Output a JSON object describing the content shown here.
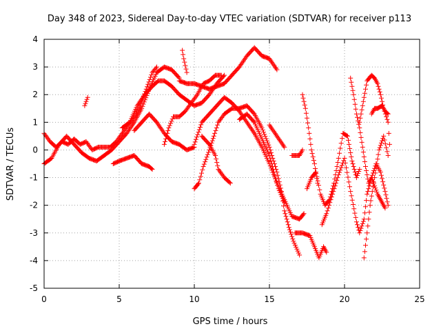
{
  "chart_data": {
    "type": "scatter",
    "title": "Day 348 of 2023, Sidereal Day-to-day VTEC variation (SDTVAR) for receiver p113",
    "xlabel": "GPS time / hours",
    "ylabel": "SDTVAR / TECUs",
    "xlim": [
      0,
      25
    ],
    "ylim": [
      -5,
      4
    ],
    "xticks": [
      "0",
      "5",
      "10",
      "15",
      "20",
      "25"
    ],
    "yticks": [
      "4",
      "3",
      "2",
      "1",
      "0",
      "-1",
      "-2",
      "-3",
      "-4",
      "-5"
    ],
    "grid": true,
    "marker": "plus",
    "color": "#ff0000",
    "series": [
      {
        "name": "track-1",
        "points": [
          [
            0.0,
            0.6
          ],
          [
            0.4,
            0.3
          ],
          [
            0.8,
            0.1
          ],
          [
            1.2,
            0.3
          ],
          [
            1.6,
            0.2
          ],
          [
            2.0,
            0.4
          ],
          [
            2.4,
            0.2
          ],
          [
            2.8,
            0.3
          ],
          [
            3.2,
            0.0
          ],
          [
            3.6,
            0.1
          ],
          [
            4.0,
            0.1
          ],
          [
            4.4,
            0.1
          ],
          [
            4.8,
            0.3
          ],
          [
            5.2,
            0.6
          ],
          [
            5.6,
            0.9
          ],
          [
            6.0,
            1.2
          ],
          [
            6.4,
            1.6
          ],
          [
            6.8,
            2.2
          ],
          [
            7.2,
            2.8
          ],
          [
            7.5,
            3.0
          ]
        ]
      },
      {
        "name": "track-2",
        "points": [
          [
            0.0,
            -0.5
          ],
          [
            0.5,
            -0.3
          ],
          [
            1.0,
            0.2
          ],
          [
            1.5,
            0.5
          ],
          [
            2.0,
            0.2
          ],
          [
            2.5,
            -0.1
          ],
          [
            3.0,
            -0.3
          ],
          [
            3.5,
            -0.4
          ],
          [
            4.0,
            -0.2
          ],
          [
            4.5,
            0.0
          ],
          [
            5.0,
            0.3
          ],
          [
            5.5,
            0.6
          ],
          [
            6.0,
            1.0
          ],
          [
            6.5,
            1.5
          ],
          [
            7.0,
            2.2
          ],
          [
            7.5,
            2.8
          ],
          [
            8.0,
            3.0
          ],
          [
            8.5,
            2.9
          ],
          [
            9.0,
            2.6
          ]
        ]
      },
      {
        "name": "track-3",
        "points": [
          [
            4.6,
            -0.5
          ],
          [
            5.0,
            -0.4
          ],
          [
            5.5,
            -0.3
          ],
          [
            6.0,
            -0.2
          ],
          [
            6.5,
            -0.5
          ],
          [
            7.0,
            -0.6
          ],
          [
            7.2,
            -0.7
          ]
        ]
      },
      {
        "name": "track-4",
        "points": [
          [
            6.0,
            0.7
          ],
          [
            6.5,
            1.0
          ],
          [
            7.0,
            1.3
          ],
          [
            7.5,
            1.0
          ],
          [
            8.0,
            0.6
          ],
          [
            8.5,
            0.3
          ],
          [
            9.0,
            0.2
          ],
          [
            9.5,
            0.0
          ],
          [
            10.0,
            0.1
          ]
        ]
      },
      {
        "name": "track-5",
        "points": [
          [
            5.2,
            0.8
          ],
          [
            5.7,
            1.0
          ],
          [
            6.2,
            1.6
          ],
          [
            6.7,
            2.0
          ],
          [
            7.2,
            2.3
          ],
          [
            7.6,
            2.5
          ],
          [
            8.0,
            2.5
          ],
          [
            8.5,
            2.3
          ],
          [
            9.0,
            2.0
          ],
          [
            9.5,
            1.8
          ],
          [
            10.0,
            1.6
          ],
          [
            10.5,
            1.7
          ],
          [
            11.0,
            2.0
          ],
          [
            11.5,
            2.4
          ],
          [
            12.0,
            2.7
          ]
        ]
      },
      {
        "name": "track-6",
        "points": [
          [
            8.0,
            0.2
          ],
          [
            8.3,
            0.8
          ],
          [
            8.6,
            1.2
          ],
          [
            9.0,
            1.2
          ],
          [
            9.4,
            1.4
          ],
          [
            9.8,
            1.7
          ],
          [
            10.2,
            2.0
          ],
          [
            10.6,
            2.4
          ],
          [
            11.0,
            2.5
          ],
          [
            11.4,
            2.7
          ],
          [
            11.8,
            2.7
          ]
        ]
      },
      {
        "name": "track-7",
        "points": [
          [
            9.0,
            2.5
          ],
          [
            9.5,
            2.4
          ],
          [
            10.0,
            2.4
          ],
          [
            10.5,
            2.3
          ],
          [
            11.0,
            2.2
          ],
          [
            11.5,
            2.3
          ],
          [
            12.0,
            2.4
          ],
          [
            12.5,
            2.7
          ],
          [
            13.0,
            3.0
          ],
          [
            13.5,
            3.4
          ],
          [
            14.0,
            3.7
          ],
          [
            14.5,
            3.4
          ],
          [
            15.0,
            3.3
          ],
          [
            15.5,
            2.9
          ]
        ]
      },
      {
        "name": "track-8",
        "points": [
          [
            9.2,
            3.6
          ],
          [
            9.3,
            3.3
          ],
          [
            9.5,
            2.8
          ]
        ]
      },
      {
        "name": "track-9",
        "points": [
          [
            2.7,
            1.6
          ],
          [
            2.9,
            1.9
          ]
        ]
      },
      {
        "name": "track-10",
        "points": [
          [
            10.0,
            -1.4
          ],
          [
            10.3,
            -1.2
          ],
          [
            10.6,
            -0.6
          ],
          [
            11.0,
            0.0
          ],
          [
            11.3,
            0.5
          ],
          [
            11.6,
            1.0
          ],
          [
            12.0,
            1.3
          ],
          [
            12.5,
            1.5
          ],
          [
            13.0,
            1.5
          ],
          [
            13.5,
            1.6
          ],
          [
            14.0,
            1.3
          ],
          [
            14.5,
            0.8
          ],
          [
            15.0,
            0.1
          ],
          [
            15.5,
            -0.8
          ],
          [
            15.8,
            -1.5
          ],
          [
            16.0,
            -2.2
          ],
          [
            16.3,
            -2.8
          ],
          [
            16.6,
            -3.3
          ],
          [
            17.0,
            -3.8
          ]
        ]
      },
      {
        "name": "track-11",
        "points": [
          [
            10.5,
            0.5
          ],
          [
            11.0,
            0.2
          ],
          [
            11.4,
            -0.2
          ],
          [
            11.6,
            -0.7
          ],
          [
            12.0,
            -1.0
          ],
          [
            12.4,
            -1.2
          ]
        ]
      },
      {
        "name": "track-12",
        "points": [
          [
            10.0,
            0.2
          ],
          [
            10.5,
            1.0
          ],
          [
            11.0,
            1.3
          ],
          [
            11.5,
            1.6
          ],
          [
            12.0,
            1.9
          ],
          [
            12.5,
            1.7
          ],
          [
            13.0,
            1.4
          ],
          [
            13.5,
            1.0
          ],
          [
            14.0,
            0.6
          ],
          [
            14.5,
            0.1
          ],
          [
            15.0,
            -0.5
          ],
          [
            15.5,
            -1.2
          ],
          [
            16.0,
            -1.8
          ],
          [
            16.5,
            -2.4
          ],
          [
            17.0,
            -2.5
          ],
          [
            17.3,
            -2.3
          ]
        ]
      },
      {
        "name": "track-13",
        "points": [
          [
            13.0,
            1.1
          ],
          [
            13.5,
            1.3
          ],
          [
            14.0,
            1.0
          ],
          [
            14.5,
            0.4
          ],
          [
            15.0,
            -0.2
          ],
          [
            15.3,
            -0.8
          ],
          [
            15.6,
            -1.4
          ],
          [
            16.0,
            -1.9
          ]
        ]
      },
      {
        "name": "track-14",
        "points": [
          [
            15.0,
            0.9
          ],
          [
            15.5,
            0.5
          ],
          [
            16.0,
            0.1
          ]
        ]
      },
      {
        "name": "track-15",
        "points": [
          [
            16.5,
            -0.2
          ],
          [
            17.0,
            -0.2
          ],
          [
            17.2,
            0.0
          ]
        ]
      },
      {
        "name": "track-16",
        "points": [
          [
            16.7,
            -3.0
          ],
          [
            17.2,
            -3.0
          ],
          [
            17.7,
            -3.1
          ],
          [
            18.0,
            -3.5
          ],
          [
            18.3,
            -3.9
          ],
          [
            18.6,
            -3.5
          ],
          [
            18.8,
            -3.7
          ]
        ]
      },
      {
        "name": "track-17",
        "points": [
          [
            17.2,
            2.0
          ],
          [
            17.4,
            1.5
          ],
          [
            17.6,
            0.8
          ],
          [
            17.8,
            0.0
          ],
          [
            18.0,
            -0.5
          ],
          [
            18.2,
            -1.2
          ]
        ]
      },
      {
        "name": "track-18",
        "points": [
          [
            17.5,
            -1.4
          ],
          [
            17.8,
            -1.0
          ],
          [
            18.1,
            -0.8
          ],
          [
            18.4,
            -1.6
          ],
          [
            18.7,
            -2.0
          ],
          [
            19.0,
            -1.8
          ],
          [
            19.3,
            -1.2
          ],
          [
            19.6,
            -0.3
          ],
          [
            19.9,
            0.6
          ],
          [
            20.2,
            0.5
          ],
          [
            20.5,
            -0.4
          ],
          [
            20.8,
            -1.0
          ],
          [
            21.0,
            -0.7
          ]
        ]
      },
      {
        "name": "track-19",
        "points": [
          [
            18.5,
            -2.7
          ],
          [
            18.8,
            -2.3
          ],
          [
            19.2,
            -1.6
          ],
          [
            19.6,
            -0.9
          ],
          [
            20.0,
            -0.3
          ],
          [
            20.4,
            -1.5
          ],
          [
            20.8,
            -2.6
          ],
          [
            21.0,
            -3.0
          ],
          [
            21.3,
            -2.5
          ],
          [
            21.5,
            -1.6
          ],
          [
            21.8,
            -1.0
          ],
          [
            22.1,
            -0.5
          ],
          [
            22.4,
            -0.8
          ],
          [
            22.7,
            -1.5
          ],
          [
            22.9,
            -2.0
          ]
        ]
      },
      {
        "name": "track-20",
        "points": [
          [
            20.4,
            2.6
          ],
          [
            20.6,
            2.0
          ],
          [
            20.8,
            1.3
          ],
          [
            21.0,
            0.8
          ],
          [
            21.2,
            0.1
          ],
          [
            21.4,
            -0.6
          ],
          [
            21.6,
            -1.2
          ],
          [
            21.8,
            -1.0
          ],
          [
            22.0,
            -1.3
          ],
          [
            22.2,
            -1.6
          ],
          [
            22.4,
            -1.8
          ],
          [
            22.7,
            -2.1
          ]
        ]
      },
      {
        "name": "track-21",
        "points": [
          [
            21.0,
            1.0
          ],
          [
            21.2,
            1.6
          ],
          [
            21.5,
            2.5
          ],
          [
            21.8,
            2.7
          ],
          [
            22.0,
            2.6
          ],
          [
            22.2,
            2.4
          ],
          [
            22.4,
            2.0
          ],
          [
            22.6,
            1.5
          ],
          [
            22.9,
            1.0
          ],
          [
            23.0,
            0.2
          ]
        ]
      },
      {
        "name": "track-22",
        "points": [
          [
            21.3,
            -3.9
          ],
          [
            21.5,
            -3.0
          ],
          [
            21.7,
            -2.0
          ],
          [
            22.0,
            -1.0
          ],
          [
            22.3,
            0.0
          ],
          [
            22.6,
            0.5
          ],
          [
            22.9,
            -0.2
          ]
        ]
      },
      {
        "name": "track-23",
        "points": [
          [
            21.8,
            1.3
          ],
          [
            22.0,
            1.5
          ],
          [
            22.2,
            1.5
          ],
          [
            22.5,
            1.6
          ],
          [
            22.7,
            1.4
          ],
          [
            22.9,
            1.3
          ]
        ]
      }
    ]
  }
}
